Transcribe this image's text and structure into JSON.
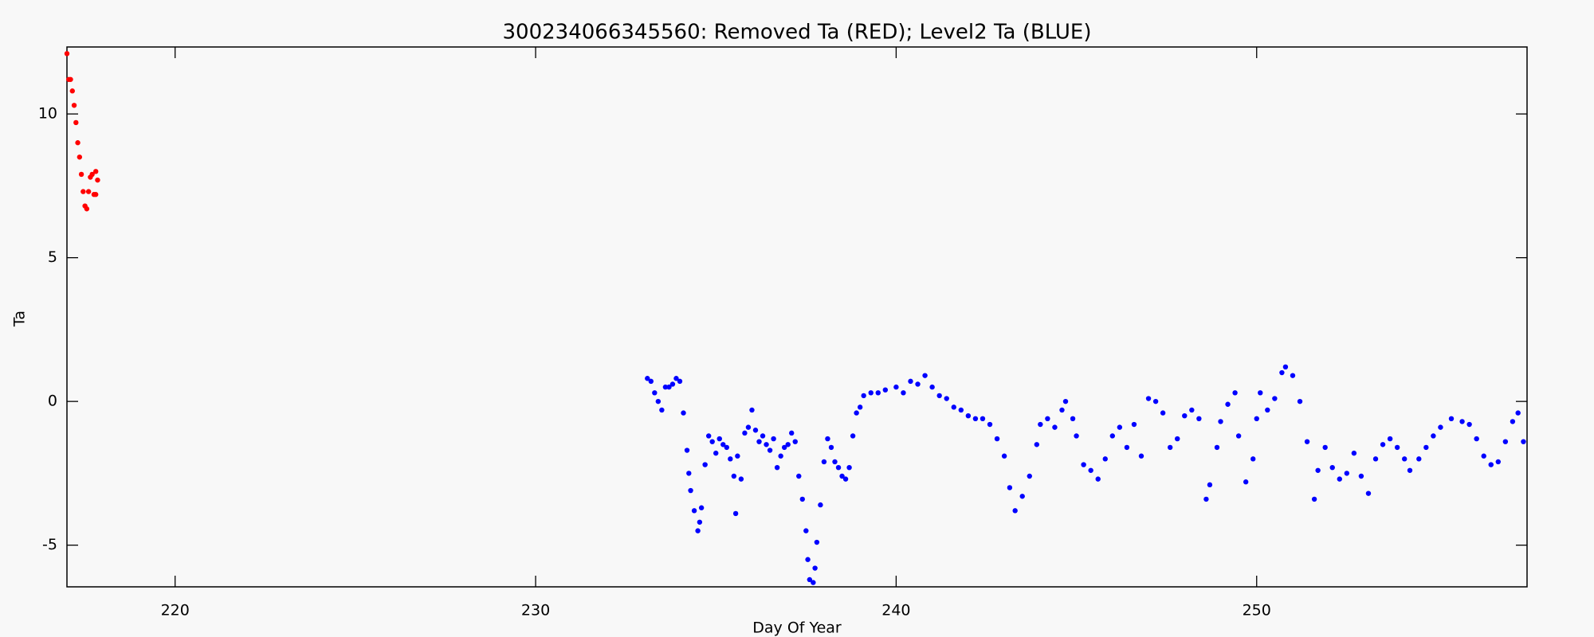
{
  "chart_data": {
    "type": "scatter",
    "title": "300234066345560: Removed Ta (RED); Level2 Ta (BLUE)",
    "x_label": "Day Of Year",
    "y_label": "Ta",
    "xlim": [
      217,
      257.5
    ],
    "ylim": [
      -6.45,
      12.33
    ],
    "xticks": [
      220,
      230,
      240,
      250
    ],
    "yticks": [
      -5,
      0,
      5,
      10
    ],
    "series": [
      {
        "color": "#ff0000",
        "x": [
          217.0,
          217.05,
          217.1,
          217.15,
          217.2,
          217.25,
          217.3,
          217.35,
          217.4,
          217.45,
          217.5,
          217.55,
          217.6,
          217.65,
          217.7,
          217.75,
          217.8,
          217.85,
          217.8
        ],
        "values": [
          12.1,
          11.2,
          11.2,
          10.8,
          10.3,
          9.7,
          9.0,
          8.5,
          7.9,
          7.3,
          6.8,
          6.7,
          7.3,
          7.8,
          7.9,
          7.2,
          8.0,
          7.7,
          7.2
        ]
      },
      {
        "color": "#0000ff",
        "x": [
          233.1,
          233.2,
          233.3,
          233.4,
          233.5,
          233.6,
          233.7,
          233.8,
          233.9,
          234.0,
          234.1,
          234.2,
          234.25,
          234.3,
          234.4,
          234.5,
          234.55,
          234.6,
          234.7,
          234.8,
          234.9,
          235.0,
          235.1,
          235.2,
          235.3,
          235.4,
          235.5,
          235.55,
          235.6,
          235.7,
          235.8,
          235.9,
          236.0,
          236.1,
          236.2,
          236.3,
          236.4,
          236.5,
          236.6,
          236.7,
          236.8,
          236.9,
          237.0,
          237.1,
          237.2,
          237.3,
          237.4,
          237.5,
          237.55,
          237.6,
          237.7,
          237.75,
          237.8,
          237.9,
          238.0,
          238.1,
          238.2,
          238.3,
          238.4,
          238.5,
          238.6,
          238.7,
          238.8,
          238.9,
          239.0,
          239.1,
          239.3,
          239.5,
          239.7,
          240.0,
          240.2,
          240.4,
          240.6,
          240.8,
          241.0,
          241.2,
          241.4,
          241.6,
          241.8,
          242.0,
          242.2,
          242.4,
          242.6,
          242.8,
          243.0,
          243.15,
          243.3,
          243.5,
          243.7,
          243.9,
          244.0,
          244.2,
          244.4,
          244.6,
          244.7,
          244.9,
          245.0,
          245.2,
          245.4,
          245.6,
          245.8,
          246.0,
          246.2,
          246.4,
          246.6,
          246.8,
          247.0,
          247.2,
          247.4,
          247.6,
          247.8,
          248.0,
          248.2,
          248.4,
          248.6,
          248.7,
          248.9,
          249.0,
          249.2,
          249.4,
          249.5,
          249.7,
          249.9,
          250.0,
          250.1,
          250.3,
          250.5,
          250.7,
          250.8,
          251.0,
          251.2,
          251.4,
          251.6,
          251.7,
          251.9,
          252.1,
          252.3,
          252.5,
          252.7,
          252.9,
          253.1,
          253.3,
          253.5,
          253.7,
          253.9,
          254.1,
          254.25,
          254.5,
          254.7,
          254.9,
          255.1,
          255.4,
          255.7,
          255.9,
          256.1,
          256.3,
          256.5,
          256.7,
          256.9,
          257.1,
          257.25,
          257.4
        ],
        "values": [
          0.8,
          0.7,
          0.3,
          0.0,
          -0.3,
          0.5,
          0.5,
          0.6,
          0.8,
          0.7,
          -0.4,
          -1.7,
          -2.5,
          -3.1,
          -3.8,
          -4.5,
          -4.2,
          -3.7,
          -2.2,
          -1.2,
          -1.4,
          -1.8,
          -1.3,
          -1.5,
          -1.6,
          -2.0,
          -2.6,
          -3.9,
          -1.9,
          -2.7,
          -1.1,
          -0.9,
          -0.3,
          -1.0,
          -1.4,
          -1.2,
          -1.5,
          -1.7,
          -1.3,
          -2.3,
          -1.9,
          -1.6,
          -1.5,
          -1.1,
          -1.4,
          -2.6,
          -3.4,
          -4.5,
          -5.5,
          -6.2,
          -6.3,
          -5.8,
          -4.9,
          -3.6,
          -2.1,
          -1.3,
          -1.6,
          -2.1,
          -2.3,
          -2.6,
          -2.7,
          -2.3,
          -1.2,
          -0.4,
          -0.2,
          0.2,
          0.3,
          0.3,
          0.4,
          0.5,
          0.3,
          0.7,
          0.6,
          0.9,
          0.5,
          0.2,
          0.1,
          -0.2,
          -0.3,
          -0.5,
          -0.6,
          -0.6,
          -0.8,
          -1.3,
          -1.9,
          -3.0,
          -3.8,
          -3.3,
          -2.6,
          -1.5,
          -0.8,
          -0.6,
          -0.9,
          -0.3,
          0.0,
          -0.6,
          -1.2,
          -2.2,
          -2.4,
          -2.7,
          -2.0,
          -1.2,
          -0.9,
          -1.6,
          -0.8,
          -1.9,
          0.1,
          0.0,
          -0.4,
          -1.6,
          -1.3,
          -0.5,
          -0.3,
          -0.6,
          -3.4,
          -2.9,
          -1.6,
          -0.7,
          -0.1,
          0.3,
          -1.2,
          -2.8,
          -2.0,
          -0.6,
          0.3,
          -0.3,
          0.1,
          1.0,
          1.2,
          0.9,
          0.0,
          -1.4,
          -3.4,
          -2.4,
          -1.6,
          -2.3,
          -2.7,
          -2.5,
          -1.8,
          -2.6,
          -3.2,
          -2.0,
          -1.5,
          -1.3,
          -1.6,
          -2.0,
          -2.4,
          -2.0,
          -1.6,
          -1.2,
          -0.9,
          -0.6,
          -0.7,
          -0.8,
          -1.3,
          -1.9,
          -2.2,
          -2.1,
          -1.4,
          -0.7,
          -0.4,
          -1.4
        ]
      }
    ]
  }
}
